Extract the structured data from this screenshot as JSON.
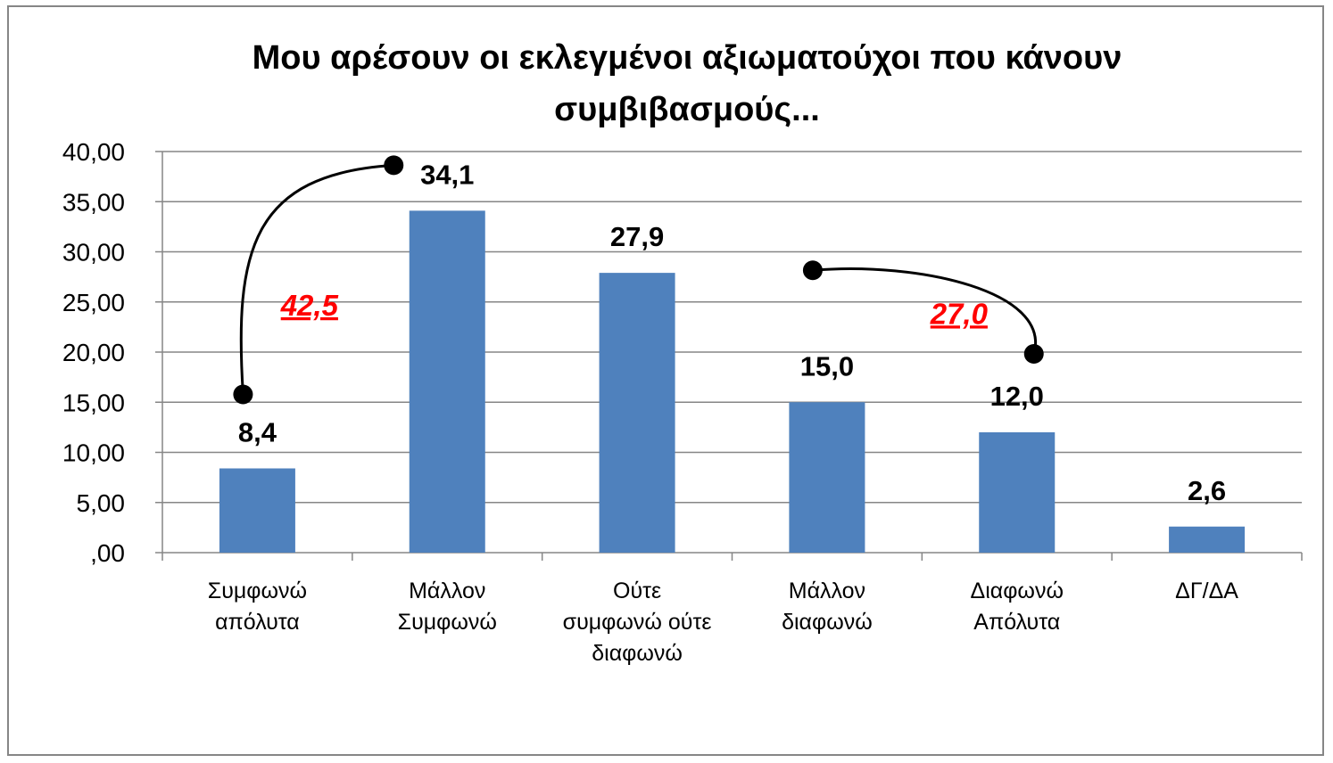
{
  "chart_data": {
    "type": "bar",
    "title": "Μου αρέσουν οι εκλεγμένοι αξιωματούχοι που κάνουν συμβιβασμούς...",
    "categories": [
      [
        "Συμφωνώ",
        "απόλυτα"
      ],
      [
        "Μάλλον",
        "Συμφωνώ"
      ],
      [
        "Ούτε",
        "συμφωνώ ούτε",
        "διαφωνώ"
      ],
      [
        "Μάλλον",
        "διαφωνώ"
      ],
      [
        "Διαφωνώ",
        "Απόλυτα"
      ],
      [
        "ΔΓ/ΔΑ"
      ]
    ],
    "values": [
      8.4,
      34.1,
      27.9,
      15.0,
      12.0,
      2.6
    ],
    "data_labels": [
      "8,4",
      "34,1",
      "27,9",
      "15,0",
      "12,0",
      "2,6"
    ],
    "ylim": [
      0,
      40
    ],
    "y_ticks": [
      {
        "value": 0,
        "label": ",00"
      },
      {
        "value": 5,
        "label": "5,00"
      },
      {
        "value": 10,
        "label": "10,00"
      },
      {
        "value": 15,
        "label": "15,00"
      },
      {
        "value": 20,
        "label": "20,00"
      },
      {
        "value": 25,
        "label": "25,00"
      },
      {
        "value": 30,
        "label": "30,00"
      },
      {
        "value": 35,
        "label": "35,00"
      },
      {
        "value": 40,
        "label": "40,00"
      }
    ],
    "grid": true,
    "legend": "none",
    "bar_color": "#4f81bd",
    "annotations": [
      {
        "text": "42,5",
        "from_category": 0,
        "to_category": 1,
        "color": "#ff0000"
      },
      {
        "text": "27,0",
        "from_category": 3,
        "to_category": 4,
        "color": "#ff0000"
      }
    ]
  }
}
